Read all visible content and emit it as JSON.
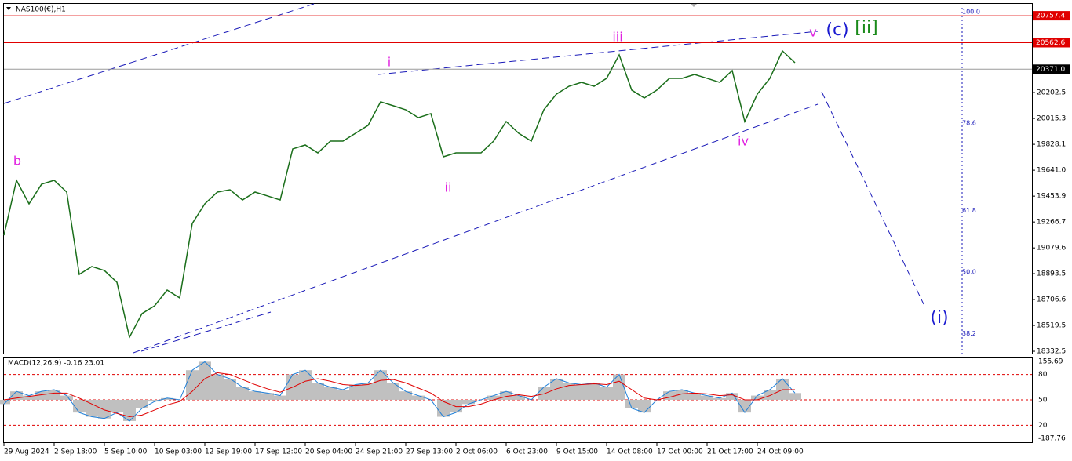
{
  "chart_data": [
    {
      "type": "line",
      "title": "NAS100(€),H1",
      "color": "#1a6e1a",
      "categories": [
        "29 Aug 2024",
        null,
        null,
        null,
        "2 Sep 18:00",
        null,
        null,
        null,
        "5 Sep 10:00",
        null,
        null,
        null,
        "10 Sep 03:00",
        null,
        null,
        null,
        "12 Sep 19:00",
        null,
        null,
        null,
        "17 Sep 12:00",
        null,
        null,
        null,
        "20 Sep 04:00",
        null,
        null,
        null,
        "24 Sep 21:00",
        null,
        null,
        null,
        "27 Sep 13:00",
        null,
        null,
        null,
        "2 Oct 06:00",
        null,
        null,
        null,
        "6 Oct 23:00",
        null,
        null,
        null,
        "9 Oct 15:00",
        null,
        null,
        null,
        "14 Oct 08:00",
        null,
        null,
        null,
        "17 Oct 00:00",
        null,
        null,
        null,
        "21 Oct 17:00",
        null,
        null,
        null,
        "24 Oct 09:00",
        null,
        null,
        null
      ],
      "values": [
        19171,
        19568,
        19398,
        19540,
        19568,
        19483,
        18888,
        18945,
        18916,
        18831,
        18435,
        18605,
        18661,
        18775,
        18718,
        19256,
        19398,
        19483,
        19500,
        19426,
        19483,
        19455,
        19426,
        19795,
        19823,
        19766,
        19851,
        19851,
        19908,
        19965,
        20135,
        20107,
        20078,
        20021,
        20050,
        19738,
        19766,
        19766,
        19766,
        19851,
        19993,
        19908,
        19851,
        20078,
        20191,
        20248,
        20276,
        20248,
        20305,
        20475,
        20220,
        20163,
        20220,
        20305,
        20305,
        20333,
        20305,
        20276,
        20361,
        19993,
        20191,
        20305,
        20503,
        20418
      ],
      "ylim": [
        18310,
        20843
      ],
      "yticks": [
        20202.5,
        20015.3,
        19828.1,
        {
          "value": 19641,
          "label": "19641.0"
        },
        19453.9,
        19266.7,
        19079.6,
        18893.5,
        18706.6,
        18519.5,
        18332.5
      ],
      "levels": [
        {
          "value": 20757.4,
          "color": "#e00000"
        },
        {
          "value": 20562.6,
          "color": "#e00000"
        },
        {
          "value": 20371,
          "label": "20371.0",
          "color": "#9a9a9a"
        }
      ],
      "fib": [
        {
          "value": 100,
          "label": "100.0"
        },
        78.6,
        61.8,
        {
          "value": 50,
          "label": "50.0"
        },
        38.2
      ],
      "annotations": [
        {
          "text": "b",
          "color": "#e020e0"
        },
        {
          "text": "i",
          "color": "#e020e0"
        },
        {
          "text": "ii",
          "color": "#e020e0"
        },
        {
          "text": "iii",
          "color": "#e020e0"
        },
        {
          "text": "iv",
          "color": "#e020e0"
        },
        {
          "text": "v",
          "color": "#e020e0"
        },
        {
          "text": "(c)",
          "color": "#1a1ad0"
        },
        {
          "text": "[ii]",
          "color": "#1a8a1a"
        },
        {
          "text": "(i)",
          "color": "#1a1ad0"
        }
      ]
    },
    {
      "type": "macd",
      "title": "MACD(12,26,9) -0.16 23.01",
      "ylim": [
        -1,
        100
      ],
      "yticks": [
        80,
        50,
        20
      ],
      "scale_labels": [
        155.69,
        -187.76
      ],
      "series": [
        {
          "color": "#1e7fd8",
          "values": [
            45,
            60,
            55,
            60,
            62,
            55,
            35,
            30,
            28,
            35,
            25,
            40,
            48,
            52,
            50,
            85,
            95,
            80,
            75,
            65,
            60,
            58,
            55,
            80,
            85,
            70,
            65,
            62,
            68,
            70,
            85,
            70,
            60,
            55,
            50,
            30,
            35,
            45,
            50,
            55,
            60,
            55,
            50,
            65,
            75,
            70,
            68,
            70,
            65,
            80,
            40,
            35,
            50,
            60,
            62,
            58,
            55,
            52,
            58,
            35,
            55,
            62,
            75,
            58
          ]
        },
        {
          "color": "#e00000",
          "values": [
            50,
            52,
            54,
            56,
            58,
            58,
            52,
            45,
            38,
            34,
            30,
            32,
            38,
            44,
            48,
            60,
            75,
            82,
            80,
            74,
            68,
            63,
            59,
            65,
            72,
            75,
            72,
            68,
            67,
            68,
            73,
            74,
            70,
            64,
            58,
            48,
            42,
            42,
            45,
            50,
            54,
            56,
            54,
            57,
            63,
            67,
            68,
            69,
            68,
            72,
            62,
            52,
            50,
            53,
            57,
            58,
            57,
            55,
            56,
            50,
            50,
            55,
            62,
            62
          ]
        }
      ]
    }
  ]
}
